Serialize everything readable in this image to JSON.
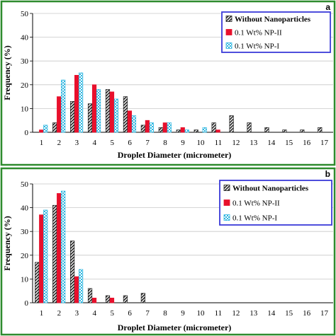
{
  "figure": {
    "panel_border_color": "#2e8b2e",
    "legend_border_color": "#3a3ad8",
    "series_colors": {
      "without_np": "#222222",
      "np2": "#e8102c",
      "np1": "#2fb6e0"
    }
  },
  "chart_data": [
    {
      "type": "bar",
      "panel_label": "a",
      "xlabel": "Droplet Diameter (micrometer)",
      "ylabel": "Frequency (%)",
      "ylim": [
        0,
        50
      ],
      "yticks": [
        "0",
        "10",
        "20",
        "30",
        "40",
        "50"
      ],
      "grid": true,
      "legend_position": "top-right",
      "categories": [
        "1",
        "2",
        "3",
        "4",
        "5",
        "6",
        "7",
        "8",
        "9",
        "10",
        "11",
        "12",
        "13",
        "14",
        "15",
        "16",
        "17"
      ],
      "series": [
        {
          "name": "Without Nanoparticles",
          "pattern": "hatched",
          "values": [
            0,
            4,
            13,
            12,
            18,
            15,
            3,
            2,
            1,
            1,
            4,
            7,
            4,
            2,
            1,
            1,
            2
          ]
        },
        {
          "name": "0.1 Wt% NP-II",
          "pattern": "solid",
          "values": [
            1,
            15,
            24,
            20,
            17,
            9,
            5,
            4,
            2,
            0,
            1,
            0,
            0,
            0,
            0,
            0,
            0
          ]
        },
        {
          "name": "0.1 Wt% NP-I",
          "pattern": "checkered",
          "values": [
            3,
            22,
            25,
            18,
            14,
            7,
            4,
            4,
            1,
            2,
            0,
            0,
            0,
            0,
            0,
            0,
            0
          ]
        }
      ]
    },
    {
      "type": "bar",
      "panel_label": "b",
      "xlabel": "Droplet Diameter (micrometer)",
      "ylabel": "Frequency (%)",
      "ylim": [
        0,
        50
      ],
      "yticks": [
        "0",
        "10",
        "20",
        "30",
        "40",
        "50"
      ],
      "grid": true,
      "legend_position": "top-right",
      "categories": [
        "1",
        "2",
        "3",
        "4",
        "5",
        "6",
        "7",
        "8",
        "9",
        "10",
        "11",
        "12",
        "13",
        "14",
        "15",
        "16",
        "17"
      ],
      "series": [
        {
          "name": "Without Nanoparticles",
          "pattern": "hatched",
          "values": [
            17,
            41,
            26,
            6,
            3,
            3,
            4,
            0,
            0,
            0,
            0,
            0,
            0,
            0,
            0,
            0,
            0
          ]
        },
        {
          "name": "0.1 Wt% NP-II",
          "pattern": "solid",
          "values": [
            37,
            46,
            11,
            2,
            2,
            0,
            0,
            0,
            0,
            0,
            0,
            0,
            0,
            0,
            0,
            0,
            0
          ]
        },
        {
          "name": "0.1 Wt% NP-I",
          "pattern": "checkered",
          "values": [
            39,
            47,
            14,
            0,
            0,
            0,
            0,
            0,
            0,
            0,
            0,
            0,
            0,
            0,
            0,
            0,
            0
          ]
        }
      ]
    }
  ]
}
